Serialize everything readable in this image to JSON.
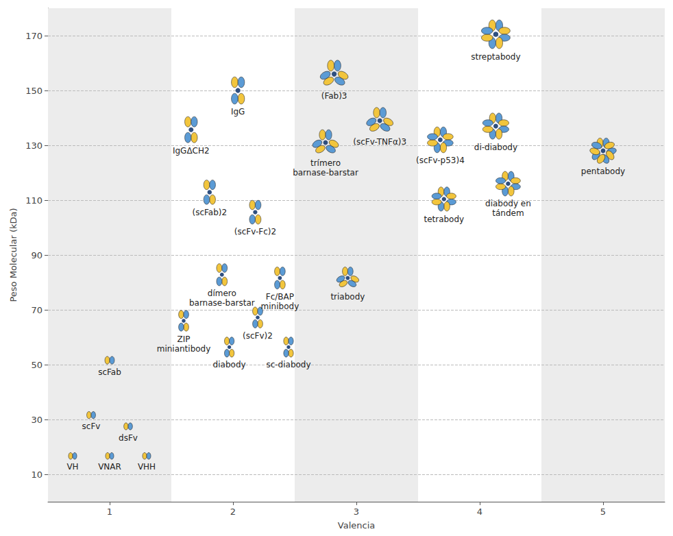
{
  "chart_data": {
    "type": "scatter",
    "x_label": "Valencia",
    "y_label": "Peso Molecular (kDa)",
    "xlim": [
      0.5,
      5.5
    ],
    "xticks": [
      1,
      2,
      3,
      4,
      5
    ],
    "ylim": [
      0,
      180
    ],
    "yticks": [
      10,
      30,
      50,
      70,
      90,
      110,
      130,
      150,
      170
    ],
    "grid": true,
    "labels": [
      "VH",
      "VNAR",
      "VHH",
      "scFv",
      "dsFv",
      "scFab",
      "IgGΔCH2",
      "IgG",
      "(scFab)2",
      "(scFv-Fc)2",
      "dímero barnase-barstar",
      "Fc/BAP minibody",
      "ZIP miniantibody",
      "(scFv)2",
      "diabody",
      "sc-diabody",
      "(Fab)3",
      "(scFv-TNFα)3",
      "trímero barnase-barstar",
      "triabody",
      "streptabody",
      "(scFv-p53)4",
      "di-diabody",
      "tetrabody",
      "diabody en tándem",
      "pentabody"
    ],
    "x": [
      0.7,
      1.0,
      1.3,
      0.85,
      1.15,
      1.0,
      1.66,
      2.04,
      1.81,
      2.18,
      1.91,
      2.38,
      1.6,
      2.2,
      1.97,
      2.45,
      2.82,
      3.19,
      2.75,
      2.93,
      4.13,
      3.68,
      4.13,
      3.71,
      4.23,
      5.0
    ],
    "values": [
      16.7,
      16.7,
      16.7,
      31.6,
      27.5,
      51.6,
      135.7,
      150,
      112.9,
      105.6,
      82.8,
      81.6,
      66,
      67.2,
      56.4,
      56.4,
      156,
      139,
      131,
      81.6,
      170.5,
      132,
      137,
      110.4,
      116,
      128
    ]
  }
}
